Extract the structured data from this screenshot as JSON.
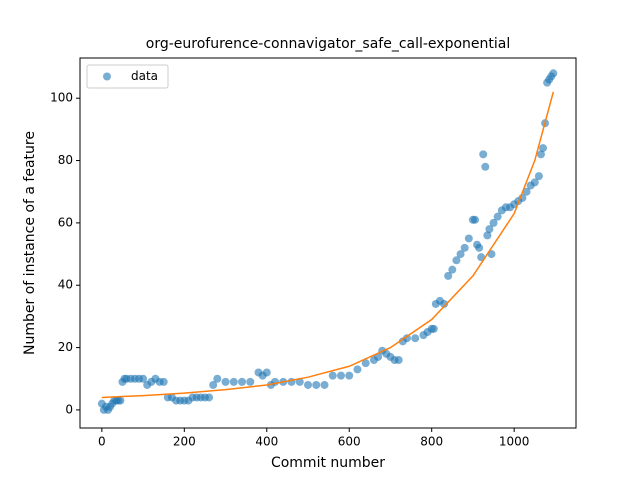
{
  "chart_data": {
    "type": "scatter",
    "title": "org-eurofurence-connavigator_safe_call-exponential",
    "x_label": "Commit number",
    "y_label": "Number of instance of a feature",
    "xlim": [
      -53,
      1150
    ],
    "ylim": [
      -5.8,
      112.9
    ],
    "xticks": [
      0,
      200,
      400,
      600,
      800,
      1000
    ],
    "yticks": [
      0,
      20,
      40,
      60,
      80,
      100
    ],
    "legend": "upper left",
    "series": [
      {
        "name": "data",
        "color": "#1f77b4",
        "x": [
          0,
          5,
          10,
          15,
          20,
          25,
          30,
          35,
          40,
          45,
          50,
          55,
          60,
          70,
          80,
          90,
          100,
          110,
          120,
          130,
          140,
          150,
          160,
          170,
          180,
          190,
          200,
          210,
          220,
          230,
          240,
          250,
          260,
          270,
          280,
          300,
          320,
          340,
          360,
          380,
          390,
          400,
          410,
          420,
          440,
          460,
          480,
          500,
          520,
          540,
          560,
          580,
          600,
          620,
          640,
          660,
          670,
          680,
          690,
          700,
          710,
          720,
          730,
          740,
          760,
          780,
          790,
          800,
          805,
          810,
          820,
          830,
          840,
          850,
          860,
          870,
          880,
          890,
          900,
          905,
          910,
          915,
          920,
          925,
          930,
          935,
          940,
          945,
          950,
          960,
          970,
          980,
          990,
          1000,
          1010,
          1020,
          1030,
          1040,
          1050,
          1060,
          1065,
          1070,
          1075,
          1080,
          1085,
          1090,
          1095
        ],
        "values": [
          2,
          0,
          1,
          0,
          1,
          2,
          3,
          3,
          3,
          3,
          9,
          10,
          10,
          10,
          10,
          10,
          10,
          8,
          9,
          10,
          9,
          9,
          4,
          4,
          3,
          3,
          3,
          3,
          4,
          4,
          4,
          4,
          4,
          8,
          10,
          9,
          9,
          9,
          9,
          12,
          11,
          12,
          8,
          9,
          9,
          9,
          9,
          8,
          8,
          8,
          11,
          11,
          11,
          13,
          15,
          16,
          17,
          19,
          18,
          17,
          16,
          16,
          22,
          23,
          23,
          24,
          25,
          26,
          26,
          34,
          35,
          34,
          43,
          45,
          48,
          50,
          52,
          55,
          61,
          61,
          53,
          52,
          49,
          82,
          78,
          56,
          58,
          50,
          60,
          62,
          64,
          65,
          65,
          66,
          67,
          68,
          70,
          72,
          73,
          75,
          82,
          84,
          92,
          105,
          106,
          107,
          108
        ]
      }
    ],
    "fit": {
      "color": "#ff7f0e",
      "x": [
        0,
        100,
        200,
        300,
        400,
        500,
        600,
        700,
        800,
        900,
        1000,
        1050,
        1095
      ],
      "values": [
        4,
        4.6,
        5.4,
        6.5,
        8,
        10.5,
        14,
        20,
        29,
        43,
        63,
        80,
        102
      ]
    }
  }
}
